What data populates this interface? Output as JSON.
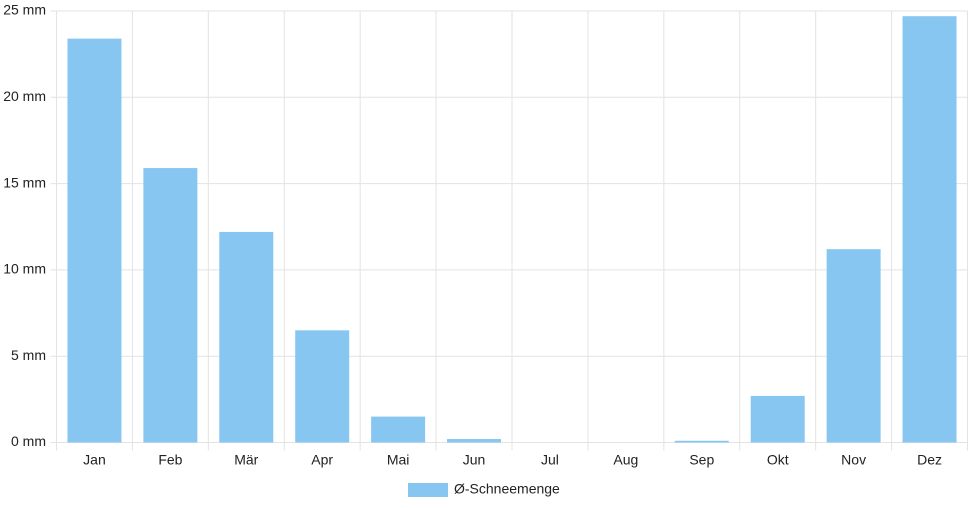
{
  "chart_data": {
    "type": "bar",
    "categories": [
      "Jan",
      "Feb",
      "Mär",
      "Apr",
      "Mai",
      "Jun",
      "Jul",
      "Aug",
      "Sep",
      "Okt",
      "Nov",
      "Dez"
    ],
    "series": [
      {
        "name": "Ø-Schneemenge",
        "color": "#88c6f2",
        "values": [
          23.4,
          15.9,
          12.2,
          6.5,
          1.5,
          0.2,
          0,
          0,
          0.1,
          2.7,
          11.2,
          24.7
        ]
      }
    ],
    "ylim": [
      0,
      25
    ],
    "yticks": [
      {
        "value": 0,
        "label": "0 mm"
      },
      {
        "value": 5,
        "label": "5 mm"
      },
      {
        "value": 10,
        "label": "10 mm"
      },
      {
        "value": 15,
        "label": "15 mm"
      },
      {
        "value": 20,
        "label": "20 mm"
      },
      {
        "value": 25,
        "label": "25 mm"
      }
    ],
    "grid": true,
    "legend": "bottom"
  }
}
